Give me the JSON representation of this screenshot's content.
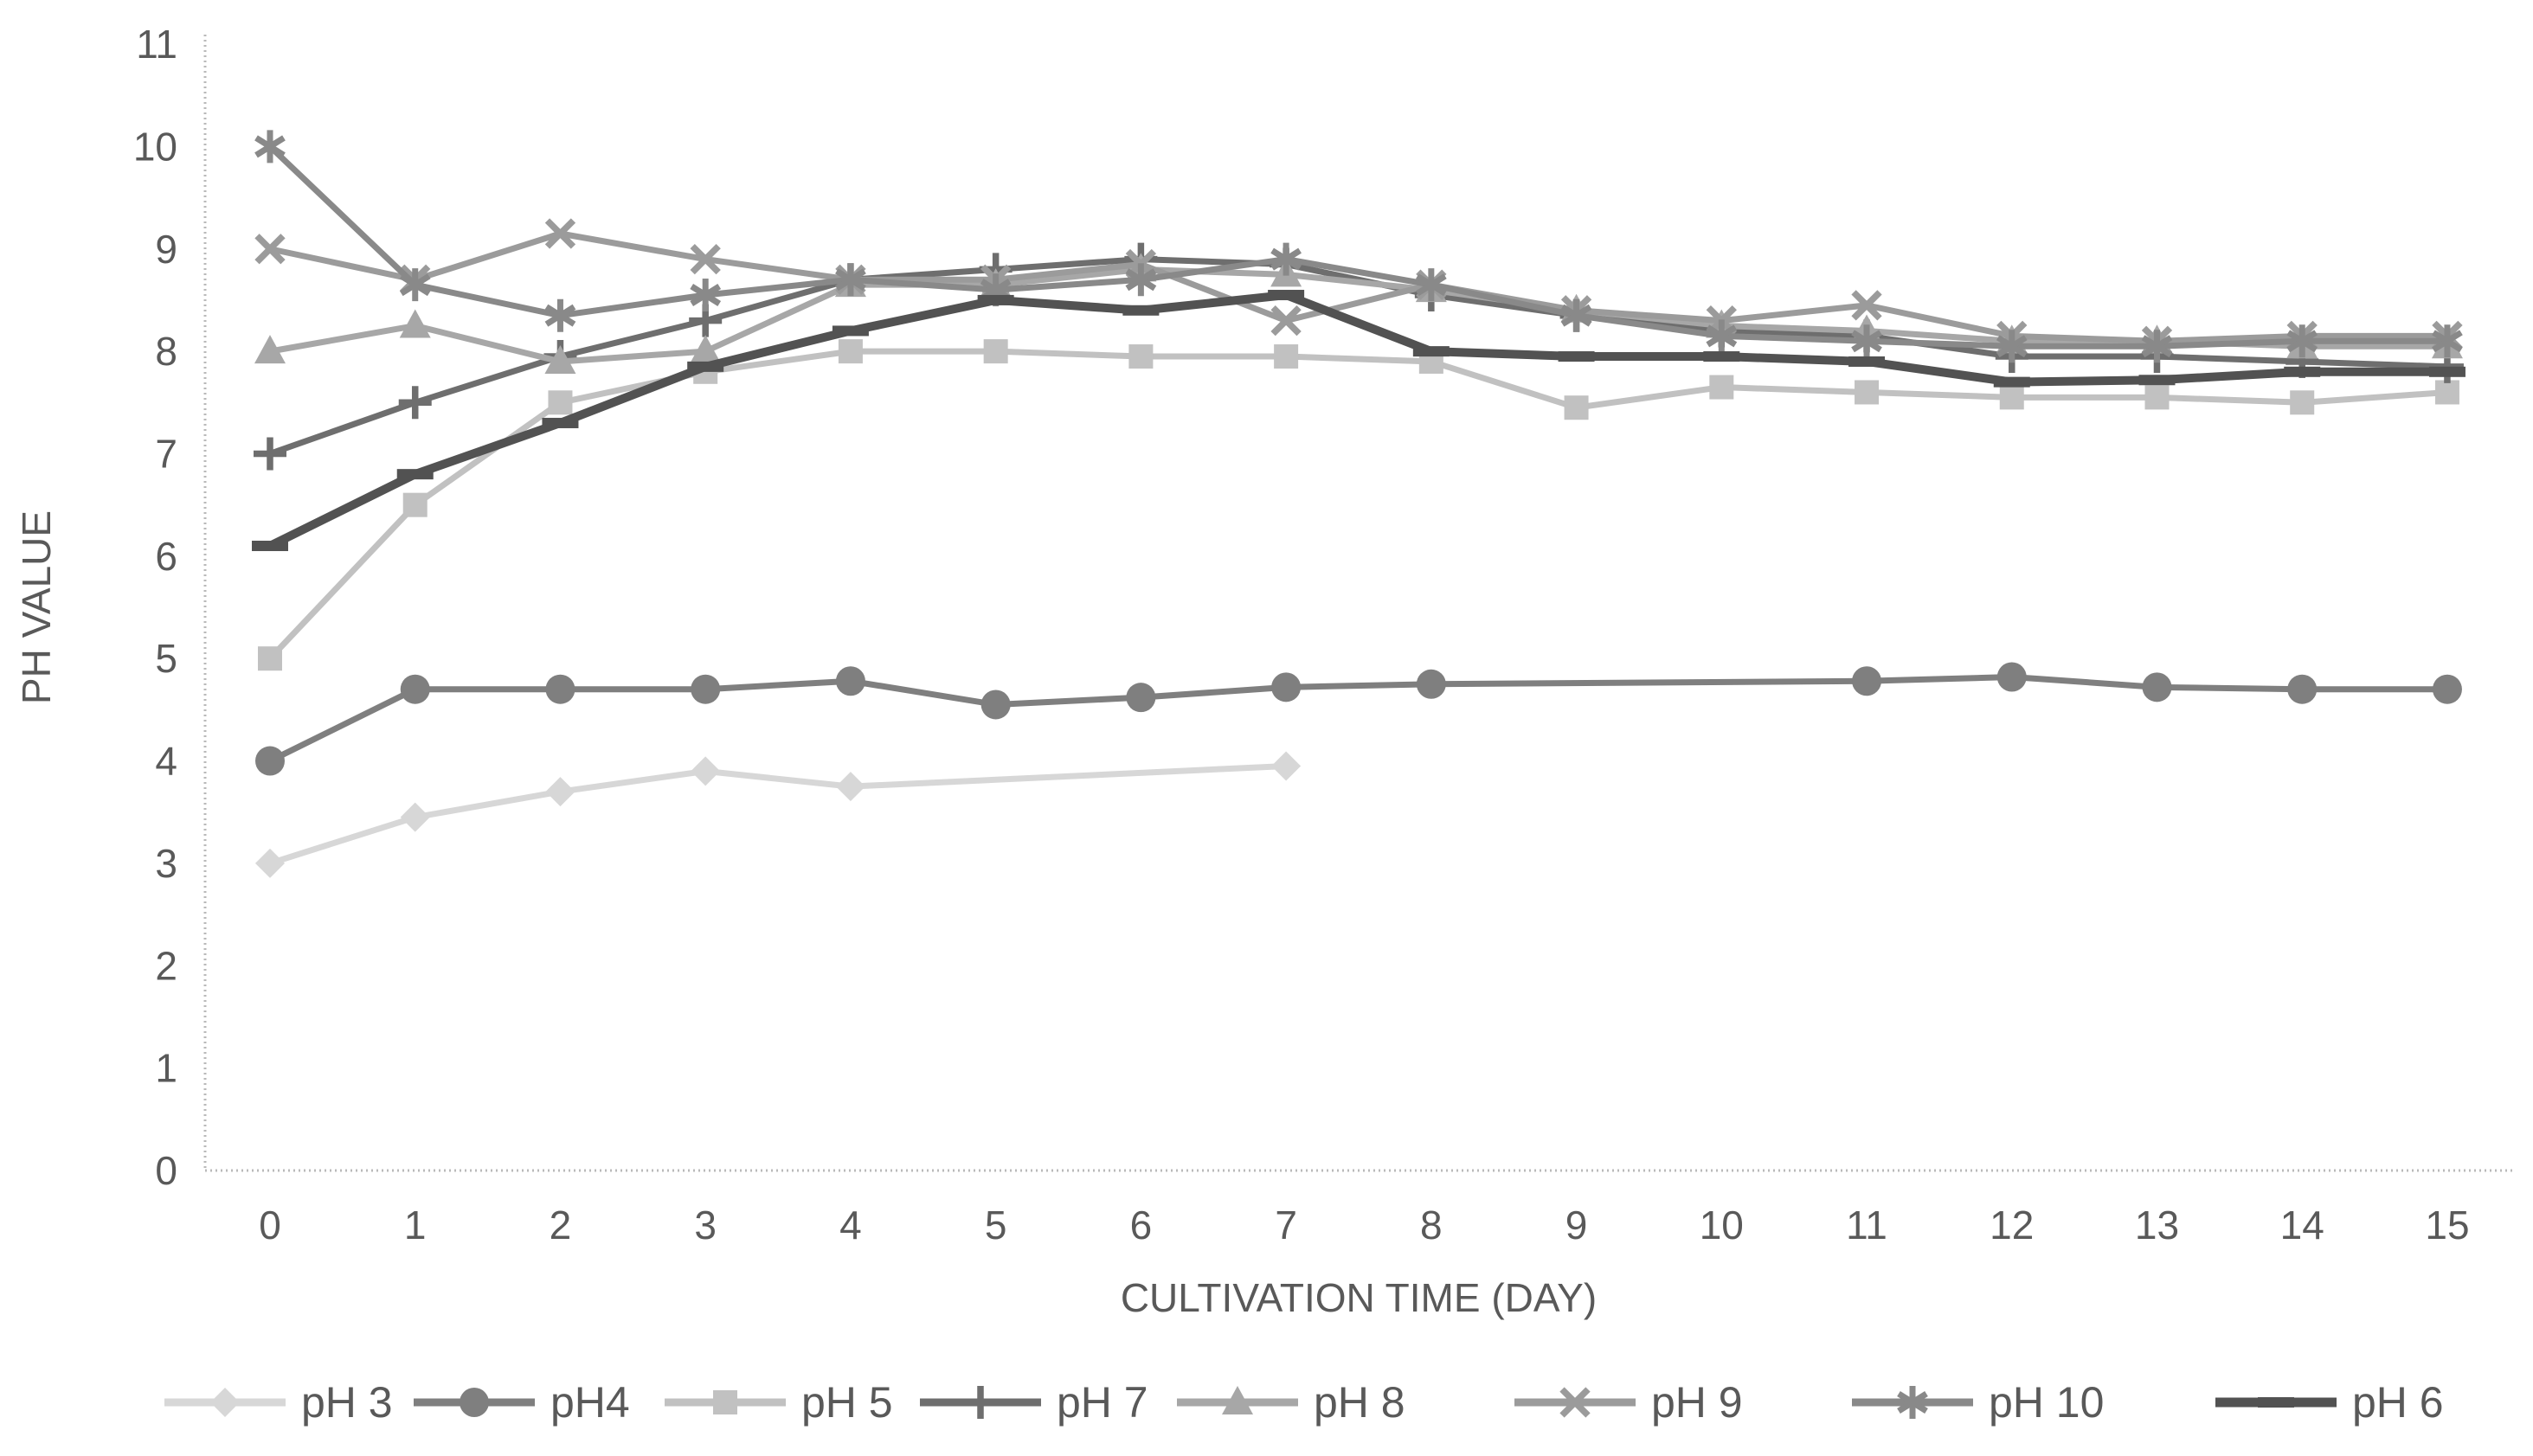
{
  "chart_data": {
    "type": "line",
    "title": "",
    "xlabel": "CULTIVATION TIME (DAY)",
    "ylabel": "PH VALUE",
    "x": [
      0,
      1,
      2,
      3,
      4,
      5,
      6,
      7,
      8,
      9,
      10,
      11,
      12,
      13,
      14,
      15
    ],
    "xlim": [
      0,
      15
    ],
    "ylim": [
      0,
      11
    ],
    "yticks": [
      0,
      1,
      2,
      3,
      4,
      5,
      6,
      7,
      8,
      9,
      10,
      11
    ],
    "grid": false,
    "legend_position": "bottom",
    "background_color": "#ffffff",
    "axis_color": "#b9b9b9",
    "label_color": "#595959",
    "series": [
      {
        "name": "pH 3",
        "marker": "diamond-icon",
        "color": "#d7d7d7",
        "values": [
          3.0,
          3.45,
          3.7,
          3.9,
          3.75,
          null,
          null,
          3.95
        ]
      },
      {
        "name": "pH4",
        "marker": "circle-icon",
        "color": "#7f7f7f",
        "values": [
          4.0,
          4.7,
          4.7,
          4.7,
          4.78,
          4.55,
          4.62,
          4.72,
          4.75,
          null,
          null,
          4.78,
          4.82,
          4.72,
          4.7,
          4.7
        ]
      },
      {
        "name": "pH 5",
        "marker": "square-icon",
        "color": "#c1c1c1",
        "values": [
          5.0,
          6.5,
          7.5,
          7.8,
          8.0,
          8.0,
          7.95,
          7.95,
          7.9,
          7.45,
          7.65,
          7.6,
          7.55,
          7.55,
          7.5,
          7.6
        ]
      },
      {
        "name": "pH 7",
        "marker": "plus-icon",
        "color": "#6e6e6e",
        "values": [
          7.0,
          7.5,
          7.95,
          8.3,
          8.7,
          8.8,
          8.9,
          8.85,
          8.55,
          8.35,
          8.2,
          8.15,
          7.95,
          7.95,
          7.9,
          7.85
        ]
      },
      {
        "name": "pH 8",
        "marker": "triangle-icon",
        "color": "#a7a7a7",
        "values": [
          8.0,
          8.25,
          7.9,
          8.0,
          8.65,
          8.65,
          8.8,
          8.75,
          8.6,
          8.4,
          8.25,
          8.2,
          8.1,
          8.1,
          8.05,
          8.05
        ]
      },
      {
        "name": "pH 9",
        "marker": "x-icon",
        "color": "#9b9b9b",
        "values": [
          9.0,
          8.7,
          9.15,
          8.9,
          8.7,
          8.7,
          8.85,
          8.3,
          8.65,
          8.4,
          8.3,
          8.45,
          8.15,
          8.1,
          8.15,
          8.15
        ]
      },
      {
        "name": "pH 10",
        "marker": "asterisk-icon",
        "color": "#898989",
        "values": [
          10.0,
          8.65,
          8.35,
          8.55,
          8.7,
          8.6,
          8.7,
          8.9,
          8.65,
          8.35,
          8.15,
          8.1,
          8.05,
          8.05,
          8.1,
          8.1
        ]
      },
      {
        "name": "pH 6",
        "marker": "dash-icon",
        "color": "#525252",
        "values": [
          6.1,
          6.8,
          7.3,
          7.85,
          8.2,
          8.5,
          8.4,
          8.55,
          8.0,
          7.95,
          7.95,
          7.9,
          7.7,
          7.72,
          7.8,
          7.8
        ]
      }
    ]
  }
}
